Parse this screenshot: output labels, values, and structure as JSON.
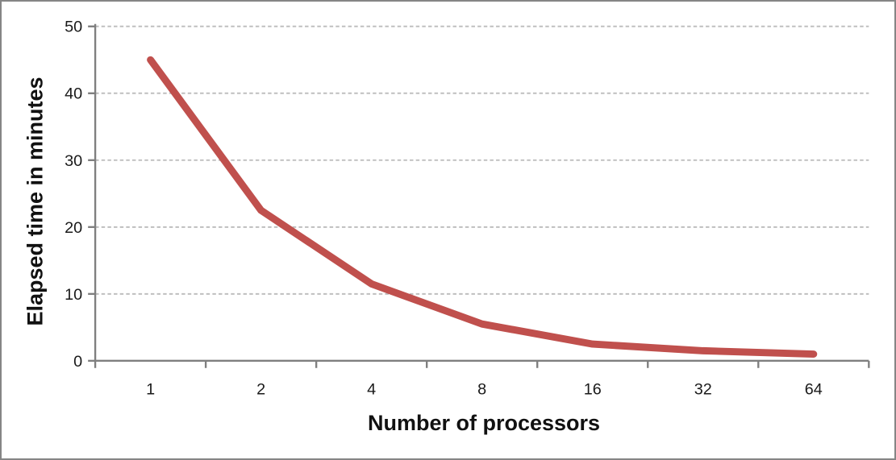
{
  "chart_data": {
    "type": "line",
    "title": "",
    "categories": [
      "1",
      "2",
      "4",
      "8",
      "16",
      "32",
      "64"
    ],
    "series": [
      {
        "name": "Elapsed time",
        "values": [
          45,
          22.5,
          11.5,
          5.5,
          2.5,
          1.5,
          1
        ],
        "color": "#C0504D"
      }
    ],
    "xlabel": "Number of processors",
    "ylabel": "Elapsed time in minutes",
    "ylim": [
      0,
      50
    ],
    "yticks": [
      0,
      10,
      20,
      30,
      40,
      50
    ],
    "grid": "horizontal-dashed-major",
    "legend": "none",
    "colors": {
      "gridline": "#BFBFBF",
      "axis": "#7F7F7F",
      "tick_label": "#1a1a1a",
      "axis_title": "#111111",
      "frame_border": "#858585",
      "background": "#FFFFFF"
    }
  }
}
